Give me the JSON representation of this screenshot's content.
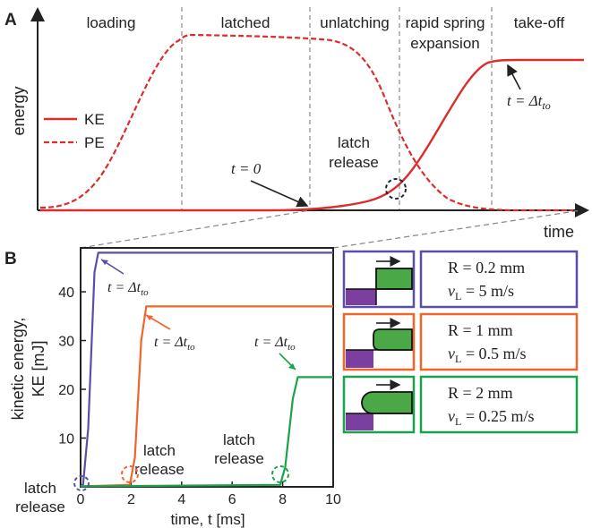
{
  "colors": {
    "ke": "#dd2c2c",
    "pe": "#dd2c2c",
    "blue": "#5a4fa6",
    "orange": "#f0652a",
    "green": "#1aa34a",
    "latch_purple": "#7b3fa0",
    "projectile_green": "#4aa847",
    "axis": "#222222",
    "divider": "#888888",
    "circle_dark": "#1c2442"
  },
  "panel_a": {
    "letter": "A",
    "ylabel": "energy",
    "xlabel": "time",
    "phases": [
      "loading",
      "latched",
      "unlatching",
      "rapid spring",
      "expansion",
      "take-off"
    ],
    "legend": [
      {
        "label": "KE",
        "style": "solid"
      },
      {
        "label": "PE",
        "style": "dashed"
      }
    ],
    "t0_label": "t = 0",
    "latch_release_line1": "latch",
    "latch_release_line2": "release",
    "tto_label": "t = Δt",
    "tto_sub": "to"
  },
  "panel_b": {
    "letter": "B",
    "ylabel_line1": "kinetic energy,",
    "ylabel_line2": "KE [mJ]",
    "xlabel": "time, t [ms]",
    "tto_label": "t = Δt",
    "tto_sub": "to",
    "latch_line1": "latch",
    "latch_line2": "release",
    "boxes": [
      {
        "r_text": "R = 0.2 mm",
        "v_prefix": "v",
        "v_sub": "L",
        "v_text": " = 5 m/s"
      },
      {
        "r_text": "R = 1 mm",
        "v_prefix": "v",
        "v_sub": "L",
        "v_text": " = 0.5 m/s"
      },
      {
        "r_text": "R = 2 mm",
        "v_prefix": "v",
        "v_sub": "L",
        "v_text": " = 0.25 m/s"
      }
    ]
  },
  "chart_data": [
    {
      "type": "line",
      "panel": "A",
      "title": "",
      "xlabel": "time",
      "ylabel": "energy",
      "grid": false,
      "legend_position": "left",
      "series": [
        {
          "name": "KE",
          "line": "solid",
          "x": [
            0,
            0.45,
            0.6,
            0.7,
            0.75,
            0.8,
            0.85,
            0.88,
            0.9,
            0.95,
            1.0
          ],
          "y": [
            0,
            0,
            0.01,
            0.04,
            0.1,
            0.3,
            0.62,
            0.85,
            0.88,
            0.88,
            0.88
          ]
        },
        {
          "name": "PE",
          "line": "dashed",
          "x": [
            0,
            0.08,
            0.18,
            0.26,
            0.3,
            0.55,
            0.63,
            0.7,
            0.78,
            0.84,
            0.9,
            1.0
          ],
          "y": [
            0,
            0.02,
            0.45,
            0.85,
            0.88,
            0.86,
            0.8,
            0.55,
            0.2,
            0.05,
            0,
            0
          ]
        }
      ]
    },
    {
      "type": "line",
      "panel": "B",
      "title": "",
      "xlabel": "time, t [ms]",
      "ylabel": "kinetic energy, KE [mJ]",
      "xlim": [
        0,
        10
      ],
      "ylim": [
        0,
        49
      ],
      "xticks": [
        0,
        2,
        4,
        6,
        8,
        10
      ],
      "yticks": [
        10,
        20,
        30,
        40
      ],
      "grid": false,
      "series": [
        {
          "color": "blue",
          "x": [
            0,
            0.1,
            0.3,
            0.55,
            0.7,
            10
          ],
          "y": [
            0.1,
            0.5,
            12,
            44,
            48,
            48
          ]
        },
        {
          "color": "orange",
          "x": [
            0,
            1.95,
            2.15,
            2.4,
            2.6,
            10
          ],
          "y": [
            0.1,
            0.4,
            6,
            30,
            37,
            37
          ]
        },
        {
          "color": "green",
          "x": [
            0,
            7.9,
            8.1,
            8.4,
            8.6,
            10
          ],
          "y": [
            0.1,
            0.4,
            4,
            18,
            22.5,
            22.5
          ]
        }
      ]
    }
  ]
}
